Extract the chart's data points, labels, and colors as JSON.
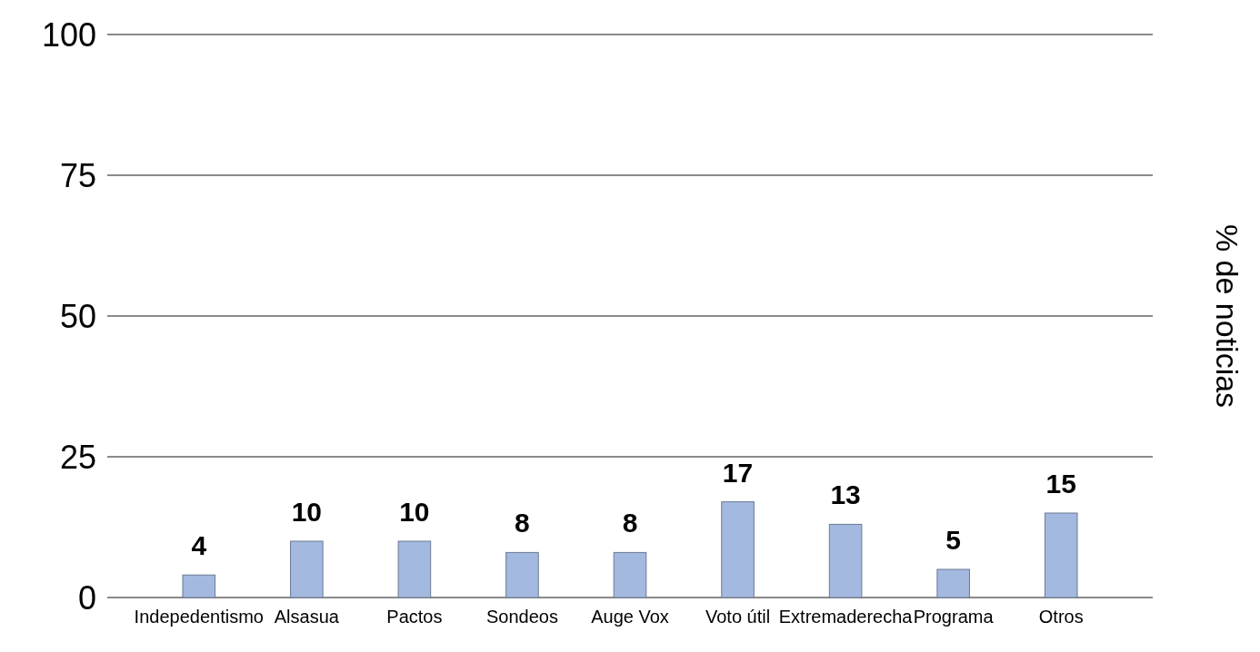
{
  "chart_data": {
    "type": "bar",
    "ylabel": "% de noticias",
    "categories": [
      "Indepedentismo",
      "Alsasua",
      "Pactos",
      "Sondeos",
      "Auge Vox",
      "Voto útil",
      "Extremaderecha",
      "Programa",
      "Otros"
    ],
    "values": [
      4,
      10,
      10,
      8,
      8,
      17,
      13,
      5,
      15
    ],
    "color": "#a4b9e0",
    "ylim": [
      0,
      100
    ],
    "yticks": [
      0,
      25,
      50,
      75,
      100
    ],
    "grid": "y",
    "data_labels": true
  }
}
